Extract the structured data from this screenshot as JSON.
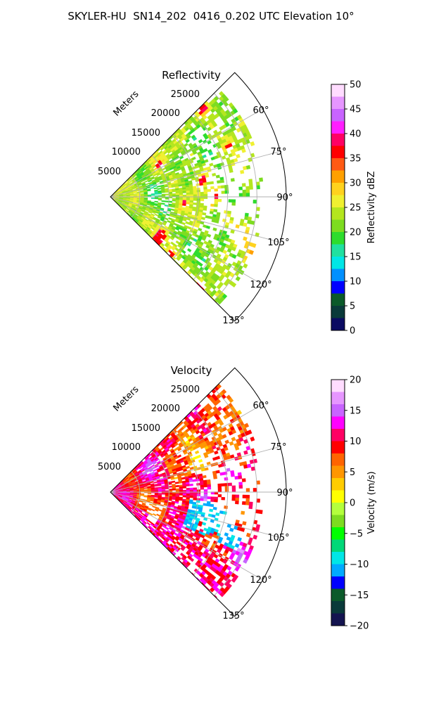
{
  "suptitle": "SKYLER-HU  SN14_202  0416_0.202 UTC Elevation 10°",
  "colors": {
    "reflectivity_ramp": [
      "#0b0b62",
      "#0a3a3a",
      "#0b5a2a",
      "#0000ff",
      "#0090ff",
      "#00e6e6",
      "#20e0a0",
      "#2ddc2d",
      "#7ddc20",
      "#b4e61e",
      "#f0f030",
      "#ffd21e",
      "#ffa000",
      "#ff5a14",
      "#ff0000",
      "#ff0064",
      "#ff1eff",
      "#c864ff",
      "#e696ff",
      "#ffdcff"
    ],
    "velocity_ramp": [
      "#141450",
      "#0a3a3a",
      "#0b5a2a",
      "#0000ff",
      "#00aaff",
      "#00e6e6",
      "#00d878",
      "#00ff00",
      "#7ddc20",
      "#b4ff3c",
      "#ffff00",
      "#ffcc00",
      "#ff9600",
      "#ff6400",
      "#ff0000",
      "#ff0064",
      "#ff00ff",
      "#c864ff",
      "#e696ff",
      "#ffdcff"
    ]
  },
  "chart_data": [
    {
      "type": "heatmap",
      "title": "Reflectivity",
      "projection": "polar sector",
      "range_label": "Meters",
      "range_ticks": [
        "5000",
        "10000",
        "15000",
        "20000",
        "25000"
      ],
      "angle_ticks": [
        "60°",
        "75°",
        "90°",
        "105°",
        "120°",
        "135°"
      ],
      "angle_range_deg": [
        45,
        135
      ],
      "range_max_m": 30000,
      "grid": true,
      "colorbar": {
        "label": "Reflectivity dBZ",
        "min": 0,
        "max": 50,
        "ticks": [
          "0",
          "5",
          "10",
          "15",
          "20",
          "25",
          "30",
          "35",
          "40",
          "45",
          "50"
        ]
      },
      "field": {
        "dominant_values": [
          18,
          28
        ],
        "max_observed": 38,
        "extent_range_m": [
          0,
          26000
        ]
      }
    },
    {
      "type": "heatmap",
      "title": "Velocity",
      "projection": "polar sector",
      "range_label": "Meters",
      "range_ticks": [
        "5000",
        "10000",
        "15000",
        "20000",
        "25000"
      ],
      "angle_ticks": [
        "60°",
        "75°",
        "90°",
        "105°",
        "120°",
        "135°"
      ],
      "angle_range_deg": [
        45,
        135
      ],
      "range_max_m": 30000,
      "grid": true,
      "colorbar": {
        "label": "Velocity (m/s)",
        "min": -20,
        "max": 20,
        "ticks": [
          "−20",
          "−15",
          "−10",
          "−5",
          "0",
          "5",
          "10",
          "15",
          "20"
        ]
      },
      "field": {
        "dominant_values": [
          5,
          15
        ],
        "min_observed": -12,
        "extent_range_m": [
          0,
          26000
        ]
      }
    }
  ]
}
